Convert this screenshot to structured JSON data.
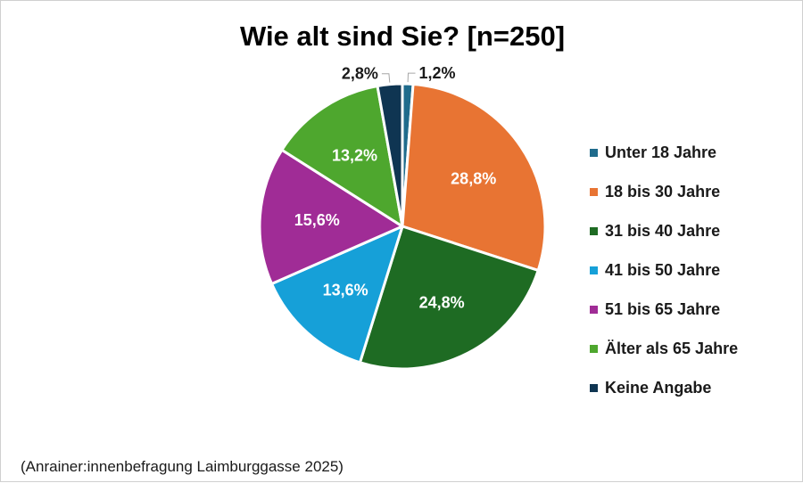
{
  "chart_data": {
    "type": "pie",
    "title": "Wie alt sind Sie? [n=250]",
    "categories": [
      "Unter 18 Jahre",
      "18 bis 30 Jahre",
      "31 bis 40 Jahre",
      "41 bis 50 Jahre",
      "51 bis 65 Jahre",
      "Älter als 65 Jahre",
      "Keine Angabe"
    ],
    "values": [
      1.2,
      28.8,
      24.8,
      13.6,
      15.6,
      13.2,
      2.8
    ],
    "labels": [
      "1,2%",
      "28,8%",
      "24,8%",
      "13,6%",
      "15,6%",
      "13,2%",
      "2,8%"
    ],
    "colors": [
      "#1f6b8c",
      "#e87433",
      "#1e6b23",
      "#16a0d8",
      "#a02c96",
      "#4ea72e",
      "#0f3552"
    ],
    "legend_position": "right"
  },
  "source": "(Anrainer:innenbefragung Laimburggasse 2025)"
}
